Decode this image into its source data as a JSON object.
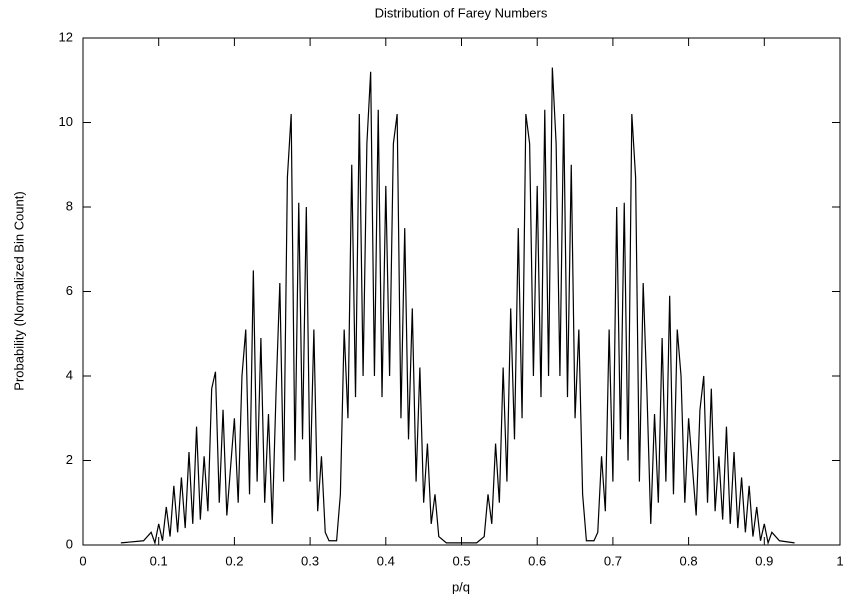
{
  "chart_data": {
    "type": "line",
    "title": "Distribution of Farey Numbers",
    "x_label": "p/q",
    "y_label": "Probability (Normalized Bin Count)",
    "color": "#000000",
    "x": [
      0.05,
      0.08,
      0.09,
      0.095,
      0.1,
      0.105,
      0.11,
      0.115,
      0.12,
      0.125,
      0.13,
      0.135,
      0.14,
      0.145,
      0.15,
      0.155,
      0.16,
      0.165,
      0.17,
      0.175,
      0.18,
      0.185,
      0.19,
      0.2,
      0.205,
      0.21,
      0.215,
      0.22,
      0.225,
      0.23,
      0.235,
      0.24,
      0.245,
      0.25,
      0.255,
      0.26,
      0.265,
      0.27,
      0.275,
      0.28,
      0.285,
      0.29,
      0.295,
      0.3,
      0.305,
      0.31,
      0.315,
      0.32,
      0.325,
      0.335,
      0.34,
      0.345,
      0.35,
      0.355,
      0.36,
      0.365,
      0.37,
      0.375,
      0.38,
      0.385,
      0.39,
      0.395,
      0.4,
      0.405,
      0.41,
      0.415,
      0.42,
      0.425,
      0.43,
      0.435,
      0.44,
      0.445,
      0.45,
      0.455,
      0.46,
      0.465,
      0.47,
      0.48,
      0.52,
      0.53,
      0.535,
      0.54,
      0.545,
      0.55,
      0.555,
      0.56,
      0.565,
      0.57,
      0.575,
      0.58,
      0.585,
      0.59,
      0.595,
      0.6,
      0.605,
      0.61,
      0.615,
      0.62,
      0.625,
      0.63,
      0.635,
      0.64,
      0.645,
      0.65,
      0.655,
      0.66,
      0.665,
      0.675,
      0.68,
      0.685,
      0.69,
      0.695,
      0.7,
      0.705,
      0.71,
      0.715,
      0.72,
      0.725,
      0.73,
      0.735,
      0.74,
      0.745,
      0.75,
      0.755,
      0.76,
      0.765,
      0.77,
      0.775,
      0.78,
      0.785,
      0.79,
      0.795,
      0.8,
      0.81,
      0.815,
      0.82,
      0.825,
      0.83,
      0.835,
      0.84,
      0.845,
      0.85,
      0.855,
      0.86,
      0.865,
      0.87,
      0.875,
      0.88,
      0.885,
      0.89,
      0.895,
      0.9,
      0.905,
      0.91,
      0.92,
      0.94
    ],
    "values": [
      0.05,
      0.1,
      0.3,
      0.05,
      0.5,
      0.1,
      0.9,
      0.2,
      1.4,
      0.3,
      1.6,
      0.4,
      2.2,
      0.5,
      2.8,
      0.6,
      2.1,
      0.8,
      3.7,
      4.1,
      1.0,
      3.2,
      0.7,
      3.0,
      1.0,
      4.0,
      5.1,
      1.2,
      6.5,
      1.5,
      4.9,
      1.0,
      3.1,
      0.5,
      3.6,
      6.2,
      1.5,
      8.7,
      10.2,
      2.0,
      8.1,
      2.5,
      8.0,
      1.5,
      5.1,
      0.8,
      2.1,
      0.3,
      0.1,
      0.1,
      1.2,
      5.1,
      3.0,
      9.0,
      3.5,
      10.2,
      4.0,
      9.5,
      11.2,
      4.0,
      10.3,
      3.5,
      8.5,
      4.0,
      9.5,
      10.2,
      3.0,
      7.5,
      2.5,
      5.6,
      1.5,
      4.2,
      1.0,
      2.4,
      0.5,
      1.2,
      0.2,
      0.05,
      0.05,
      0.2,
      1.2,
      0.5,
      2.4,
      1.0,
      4.2,
      1.5,
      5.6,
      2.5,
      7.5,
      3.0,
      10.2,
      9.5,
      4.0,
      8.5,
      3.5,
      10.3,
      4.0,
      11.3,
      9.5,
      4.0,
      10.2,
      3.5,
      9.0,
      3.0,
      5.1,
      1.2,
      0.1,
      0.1,
      0.3,
      2.1,
      0.8,
      5.1,
      1.5,
      8.0,
      2.5,
      8.1,
      2.0,
      10.2,
      8.7,
      1.5,
      6.2,
      3.6,
      0.5,
      3.1,
      1.0,
      4.9,
      1.5,
      5.9,
      1.2,
      5.1,
      4.0,
      1.0,
      3.0,
      0.7,
      3.2,
      4.0,
      1.0,
      3.7,
      0.8,
      2.1,
      0.6,
      2.8,
      0.5,
      2.2,
      0.4,
      1.6,
      0.3,
      1.4,
      0.2,
      0.9,
      0.1,
      0.5,
      0.05,
      0.3,
      0.1,
      0.05
    ],
    "xlim": [
      0,
      1
    ],
    "xticks": [
      0,
      0.1,
      0.2,
      0.3,
      0.4,
      0.5,
      0.6,
      0.7,
      0.8,
      0.9,
      1
    ],
    "ylim": [
      0,
      12
    ],
    "yticks": [
      0,
      2,
      4,
      6,
      8,
      10,
      12
    ],
    "grid": false
  }
}
